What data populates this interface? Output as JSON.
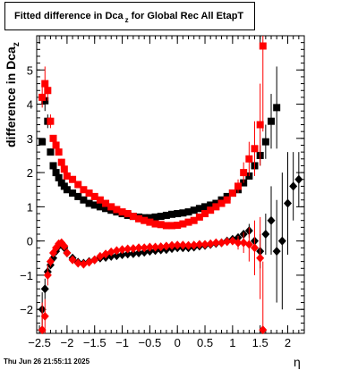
{
  "title_main": "Fitted difference in Dca",
  "title_sub": "z",
  "title_rest": "for Global Rec All EtapT",
  "ylabel_main": "difference in Dca",
  "ylabel_sub": "z",
  "xlabel": "η",
  "timestamp": "Thu Jun 26 21:55:11 2025",
  "colors": {
    "series_black": "#000000",
    "series_red": "#ff0000"
  },
  "chart_data": {
    "type": "scatter",
    "title": "Fitted difference in Dcaz for Global Rec All EtapT",
    "xlabel": "η",
    "ylabel": "difference in Dcaz",
    "xlim": [
      -2.55,
      2.3
    ],
    "ylim": [
      -2.7,
      6.0
    ],
    "x_ticks": [
      -2.5,
      -2,
      -1.5,
      -1,
      -0.5,
      0,
      0.5,
      1,
      1.5,
      2
    ],
    "x_tick_labels": [
      "−2.5",
      "−2",
      "−1.5",
      "−1",
      "−0.5",
      "0",
      "0.5",
      "1",
      "1.5",
      "2"
    ],
    "y_ticks": [
      -2,
      -1,
      0,
      1,
      2,
      3,
      4,
      5
    ],
    "y_tick_labels": [
      "−2",
      "−1",
      "0",
      "1",
      "2",
      "3",
      "4",
      "5"
    ],
    "series": [
      {
        "color": "#000000",
        "marker": "square",
        "x": [
          -2.45,
          -2.4,
          -2.35,
          -2.3,
          -2.25,
          -2.2,
          -2.15,
          -2.1,
          -2.05,
          -2.0,
          -1.9,
          -1.8,
          -1.7,
          -1.6,
          -1.5,
          -1.4,
          -1.3,
          -1.2,
          -1.1,
          -1.0,
          -0.9,
          -0.8,
          -0.7,
          -0.6,
          -0.5,
          -0.4,
          -0.3,
          -0.2,
          -0.1,
          0.0,
          0.1,
          0.2,
          0.3,
          0.4,
          0.5,
          0.6,
          0.7,
          0.8,
          0.9,
          1.0,
          1.1,
          1.2,
          1.3,
          1.4,
          1.5,
          1.6,
          1.7,
          1.8
        ],
        "y": [
          2.9,
          4.1,
          3.5,
          2.6,
          2.2,
          2.0,
          1.85,
          1.7,
          1.6,
          1.5,
          1.4,
          1.3,
          1.2,
          1.1,
          1.05,
          1.0,
          0.95,
          0.9,
          0.85,
          0.8,
          0.75,
          0.72,
          0.7,
          0.68,
          0.68,
          0.7,
          0.72,
          0.75,
          0.78,
          0.8,
          0.82,
          0.85,
          0.9,
          0.95,
          1.0,
          1.05,
          1.1,
          1.2,
          1.3,
          1.4,
          1.5,
          1.7,
          1.9,
          2.2,
          2.5,
          2.9,
          3.5,
          3.9
        ],
        "err": [
          0.1,
          0.3,
          0.2,
          0.1,
          0.05,
          0.05,
          0.05,
          0.05,
          0.05,
          0.05,
          0.03,
          0.03,
          0.03,
          0.03,
          0.03,
          0.03,
          0.03,
          0.03,
          0.03,
          0.03,
          0.03,
          0.03,
          0.03,
          0.03,
          0.03,
          0.03,
          0.03,
          0.03,
          0.03,
          0.03,
          0.03,
          0.03,
          0.03,
          0.03,
          0.03,
          0.03,
          0.03,
          0.05,
          0.05,
          0.05,
          0.05,
          0.1,
          0.1,
          0.2,
          0.3,
          0.5,
          0.8,
          1.2
        ]
      },
      {
        "color": "#ff0000",
        "marker": "square",
        "x": [
          -2.45,
          -2.4,
          -2.35,
          -2.3,
          -2.25,
          -2.2,
          -2.15,
          -2.1,
          -2.05,
          -2.0,
          -1.9,
          -1.8,
          -1.7,
          -1.6,
          -1.5,
          -1.4,
          -1.3,
          -1.2,
          -1.1,
          -1.0,
          -0.9,
          -0.8,
          -0.7,
          -0.6,
          -0.5,
          -0.4,
          -0.3,
          -0.2,
          -0.1,
          0.0,
          0.1,
          0.2,
          0.3,
          0.4,
          0.5,
          0.6,
          0.7,
          0.8,
          0.9,
          1.0,
          1.1,
          1.2,
          1.3,
          1.4,
          1.5,
          1.55
        ],
        "y": [
          4.2,
          4.6,
          4.4,
          3.5,
          3.0,
          2.8,
          2.6,
          2.3,
          2.1,
          1.9,
          1.8,
          1.65,
          1.5,
          1.4,
          1.3,
          1.2,
          1.1,
          1.0,
          0.92,
          0.85,
          0.8,
          0.72,
          0.65,
          0.6,
          0.55,
          0.5,
          0.48,
          0.45,
          0.45,
          0.46,
          0.5,
          0.55,
          0.6,
          0.7,
          0.8,
          0.9,
          1.0,
          1.1,
          1.2,
          1.4,
          1.6,
          2.0,
          2.4,
          2.7,
          3.4,
          5.7
        ],
        "err": [
          0.3,
          0.5,
          0.3,
          0.2,
          0.1,
          0.1,
          0.1,
          0.1,
          0.05,
          0.05,
          0.05,
          0.05,
          0.05,
          0.05,
          0.05,
          0.05,
          0.05,
          0.05,
          0.03,
          0.03,
          0.03,
          0.03,
          0.03,
          0.03,
          0.03,
          0.03,
          0.03,
          0.03,
          0.03,
          0.03,
          0.03,
          0.03,
          0.03,
          0.03,
          0.05,
          0.05,
          0.05,
          0.1,
          0.1,
          0.1,
          0.2,
          0.3,
          0.5,
          0.8,
          1.2,
          2.5
        ]
      },
      {
        "color": "#000000",
        "marker": "diamond",
        "x": [
          -2.45,
          -2.4,
          -2.35,
          -2.3,
          -2.25,
          -2.2,
          -2.15,
          -2.1,
          -2.05,
          -2.0,
          -1.9,
          -1.8,
          -1.7,
          -1.6,
          -1.5,
          -1.4,
          -1.3,
          -1.2,
          -1.1,
          -1.0,
          -0.9,
          -0.8,
          -0.7,
          -0.6,
          -0.5,
          -0.4,
          -0.3,
          -0.2,
          -0.1,
          0.0,
          0.1,
          0.2,
          0.3,
          0.4,
          0.5,
          0.6,
          0.7,
          0.8,
          0.9,
          1.0,
          1.1,
          1.2,
          1.3,
          1.4,
          1.5,
          1.6,
          1.7,
          1.8,
          1.9,
          2.0,
          2.1,
          2.2
        ],
        "y": [
          -2.0,
          -1.4,
          -0.9,
          -0.7,
          -0.5,
          -0.3,
          -0.15,
          -0.1,
          -0.2,
          -0.35,
          -0.5,
          -0.62,
          -0.65,
          -0.6,
          -0.55,
          -0.5,
          -0.48,
          -0.45,
          -0.43,
          -0.4,
          -0.38,
          -0.37,
          -0.35,
          -0.33,
          -0.3,
          -0.28,
          -0.26,
          -0.25,
          -0.22,
          -0.2,
          -0.2,
          -0.2,
          -0.18,
          -0.15,
          -0.13,
          -0.1,
          -0.07,
          -0.05,
          0.0,
          0.05,
          0.1,
          0.2,
          0.3,
          0.0,
          -0.3,
          0.2,
          0.6,
          -0.3,
          0.0,
          1.1,
          1.6,
          1.8
        ],
        "err": [
          0.5,
          0.3,
          0.2,
          0.1,
          0.05,
          0.05,
          0.05,
          0.05,
          0.05,
          0.05,
          0.03,
          0.03,
          0.03,
          0.03,
          0.03,
          0.03,
          0.03,
          0.03,
          0.03,
          0.03,
          0.03,
          0.03,
          0.03,
          0.03,
          0.03,
          0.03,
          0.03,
          0.03,
          0.03,
          0.03,
          0.03,
          0.03,
          0.03,
          0.03,
          0.03,
          0.03,
          0.03,
          0.05,
          0.05,
          0.05,
          0.1,
          0.1,
          0.2,
          0.3,
          0.5,
          0.6,
          1.0,
          1.5,
          2.0,
          1.5,
          1.0,
          0.8
        ]
      },
      {
        "color": "#ff0000",
        "marker": "diamond",
        "x": [
          -2.45,
          -2.4,
          -2.35,
          -2.3,
          -2.25,
          -2.2,
          -2.15,
          -2.1,
          -2.05,
          -2.0,
          -1.9,
          -1.8,
          -1.7,
          -1.6,
          -1.5,
          -1.4,
          -1.3,
          -1.2,
          -1.1,
          -1.0,
          -0.9,
          -0.8,
          -0.7,
          -0.6,
          -0.5,
          -0.4,
          -0.3,
          -0.2,
          -0.1,
          0.0,
          0.1,
          0.2,
          0.3,
          0.4,
          0.5,
          0.6,
          0.7,
          0.8,
          0.9,
          1.0,
          1.1,
          1.2,
          1.3,
          1.4,
          1.5,
          1.55
        ],
        "y": [
          -2.6,
          -2.2,
          -1.0,
          -0.6,
          -0.35,
          -0.2,
          -0.08,
          -0.05,
          -0.15,
          -0.35,
          -0.55,
          -0.65,
          -0.68,
          -0.62,
          -0.55,
          -0.45,
          -0.38,
          -0.32,
          -0.28,
          -0.25,
          -0.23,
          -0.22,
          -0.2,
          -0.2,
          -0.18,
          -0.18,
          -0.17,
          -0.15,
          -0.13,
          -0.12,
          -0.12,
          -0.13,
          -0.12,
          -0.1,
          -0.1,
          -0.08,
          -0.05,
          -0.05,
          -0.02,
          0.0,
          -0.05,
          -0.05,
          -0.1,
          -0.2,
          -0.5,
          -2.6
        ],
        "err": [
          0.8,
          0.5,
          0.3,
          0.15,
          0.1,
          0.05,
          0.05,
          0.05,
          0.05,
          0.05,
          0.03,
          0.03,
          0.03,
          0.03,
          0.03,
          0.03,
          0.03,
          0.03,
          0.03,
          0.03,
          0.03,
          0.03,
          0.03,
          0.03,
          0.03,
          0.03,
          0.03,
          0.03,
          0.03,
          0.03,
          0.03,
          0.03,
          0.03,
          0.03,
          0.05,
          0.05,
          0.05,
          0.1,
          0.1,
          0.1,
          0.2,
          0.3,
          0.5,
          0.8,
          1.2,
          2.0
        ]
      }
    ]
  }
}
